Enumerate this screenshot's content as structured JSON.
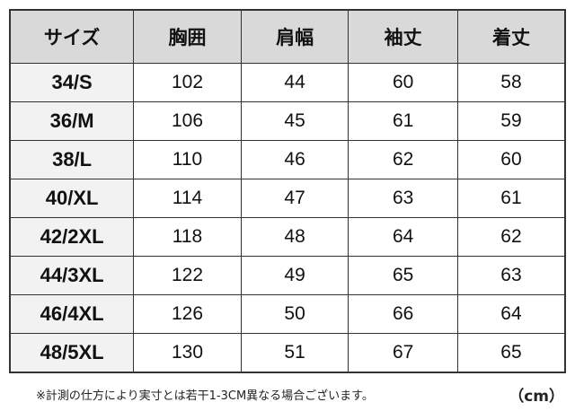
{
  "table": {
    "headers": [
      "サイズ",
      "胸囲",
      "肩幅",
      "袖丈",
      "着丈"
    ],
    "rows": [
      [
        "34/S",
        "102",
        "44",
        "60",
        "58"
      ],
      [
        "36/M",
        "106",
        "45",
        "61",
        "59"
      ],
      [
        "38/L",
        "110",
        "46",
        "62",
        "60"
      ],
      [
        "40/XL",
        "114",
        "47",
        "63",
        "61"
      ],
      [
        "42/2XL",
        "118",
        "48",
        "64",
        "62"
      ],
      [
        "44/3XL",
        "122",
        "49",
        "65",
        "63"
      ],
      [
        "46/4XL",
        "126",
        "50",
        "66",
        "64"
      ],
      [
        "48/5XL",
        "130",
        "51",
        "67",
        "65"
      ]
    ]
  },
  "footer": {
    "note": "※計測の仕方により実寸とは若干1-3CM異なる場合ございます。",
    "unit": "（cm）"
  },
  "colors": {
    "header_bg": "#d9d9d9",
    "size_col_bg": "#f2f2f2",
    "border": "#333333"
  }
}
